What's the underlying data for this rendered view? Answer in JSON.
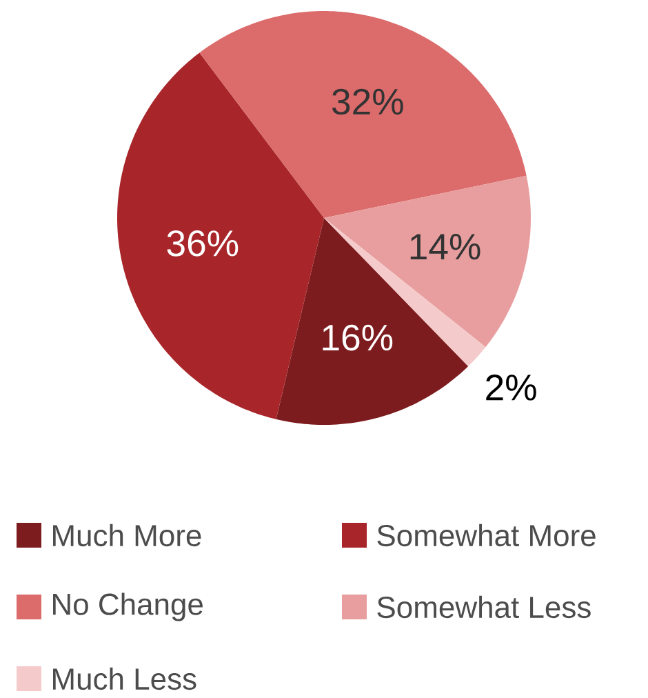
{
  "chart_data": {
    "type": "pie",
    "categories": [
      "Much More",
      "Somewhat More",
      "No Change",
      "Somewhat Less",
      "Much Less"
    ],
    "values": [
      16,
      36,
      32,
      14,
      2
    ],
    "colors": [
      "#7d1c1f",
      "#a8262a",
      "#dc6b6b",
      "#e89e9e",
      "#f5caca"
    ],
    "value_labels": [
      "16%",
      "36%",
      "32%",
      "14%",
      "2%"
    ],
    "legend": "bottom"
  }
}
